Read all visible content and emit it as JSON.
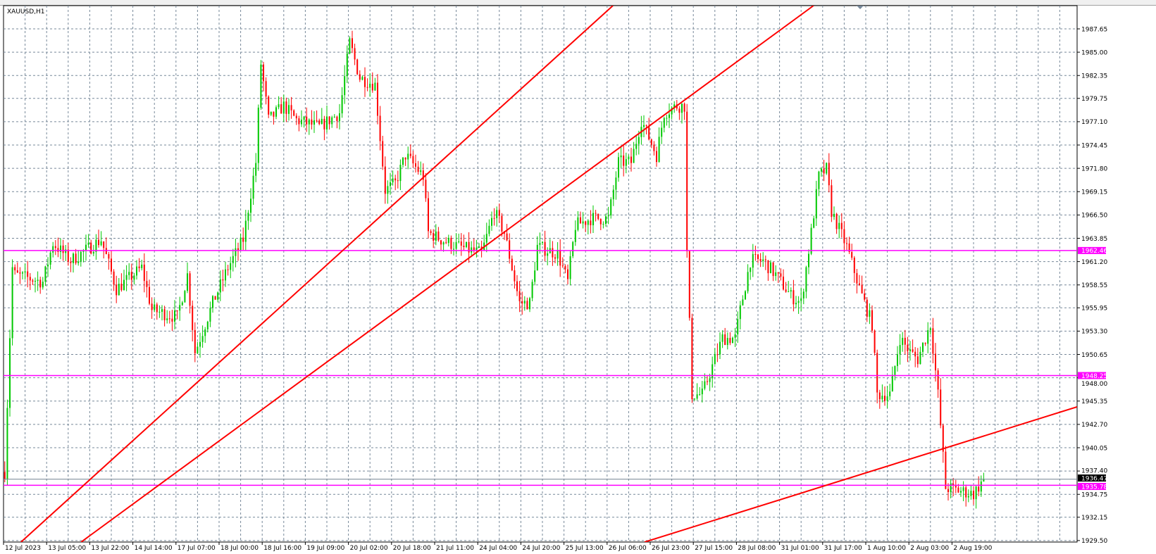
{
  "chart_title": "XAUUSD,H1",
  "colors": {
    "background": "#ffffff",
    "grid": "#778899",
    "bull_candle": "#00c800",
    "bear_candle": "#ff0000",
    "trendline": "#ff0000",
    "horizontal_level": "#ff00ff",
    "current_price_line": "#708090",
    "current_price_tag": "#000000"
  },
  "chart_data": {
    "type": "candlestick",
    "symbol": "XAUUSD",
    "timeframe": "H1",
    "grid": true,
    "ylim": [
      1929.33,
      1990.29
    ],
    "y_ticks": [
      "1987.65",
      "1985.00",
      "1982.35",
      "1979.75",
      "1977.10",
      "1974.45",
      "1971.80",
      "1969.15",
      "1966.50",
      "1963.85",
      "1961.20",
      "1958.55",
      "1955.95",
      "1953.30",
      "1950.65",
      "1948.00",
      "1945.35",
      "1942.70",
      "1940.05",
      "1937.40",
      "1934.75",
      "1932.15",
      "1929.50"
    ],
    "x_ticks": [
      "12 Jul 2023",
      "13 Jul 05:00",
      "13 Jul 22:00",
      "14 Jul 14:00",
      "17 Jul 07:00",
      "18 Jul 00:00",
      "18 Jul 16:00",
      "19 Jul 09:00",
      "20 Jul 02:00",
      "20 Jul 18:00",
      "21 Jul 11:00",
      "24 Jul 04:00",
      "24 Jul 20:00",
      "25 Jul 13:00",
      "26 Jul 06:00",
      "26 Jul 23:00",
      "27 Jul 15:00",
      "28 Jul 08:00",
      "31 Jul 01:00",
      "31 Jul 17:00",
      "1 Aug 10:00",
      "2 Aug 03:00",
      "2 Aug 19:00"
    ],
    "bars_per_x_tick": 17,
    "price_path_bar_price": [
      [
        0,
        1937.3
      ],
      [
        3,
        1960.5
      ],
      [
        4,
        1959.7
      ],
      [
        15,
        1958.9
      ],
      [
        19,
        1963.3
      ],
      [
        26,
        1961.3
      ],
      [
        38,
        1963.7
      ],
      [
        44,
        1958.1
      ],
      [
        54,
        1960.5
      ],
      [
        58,
        1955.7
      ],
      [
        68,
        1954.9
      ],
      [
        72,
        1959.7
      ],
      [
        75,
        1950.9
      ],
      [
        82,
        1956.5
      ],
      [
        88,
        1960.5
      ],
      [
        94,
        1963.7
      ],
      [
        99,
        1972.5
      ],
      [
        101,
        1983.7
      ],
      [
        104,
        1977.3
      ],
      [
        110,
        1978.9
      ],
      [
        115,
        1977.3
      ],
      [
        124,
        1976.5
      ],
      [
        132,
        1978.1
      ],
      [
        136,
        1986.1
      ],
      [
        140,
        1982.1
      ],
      [
        146,
        1981.3
      ],
      [
        150,
        1969.3
      ],
      [
        154,
        1970.1
      ],
      [
        158,
        1973.3
      ],
      [
        165,
        1970.9
      ],
      [
        167,
        1964.5
      ],
      [
        172,
        1963.7
      ],
      [
        179,
        1962.9
      ],
      [
        188,
        1962.1
      ],
      [
        193,
        1966.9
      ],
      [
        197,
        1964.5
      ],
      [
        203,
        1956.5
      ],
      [
        207,
        1956.5
      ],
      [
        210,
        1962.9
      ],
      [
        218,
        1962.1
      ],
      [
        222,
        1958.9
      ],
      [
        225,
        1965.3
      ],
      [
        231,
        1966.1
      ],
      [
        238,
        1966.1
      ],
      [
        242,
        1972.5
      ],
      [
        247,
        1972.5
      ],
      [
        251,
        1977.3
      ],
      [
        257,
        1973.3
      ],
      [
        260,
        1978.1
      ],
      [
        265,
        1978.9
      ],
      [
        268,
        1978.9
      ],
      [
        269,
        1962.1
      ],
      [
        271,
        1946.1
      ],
      [
        275,
        1946.1
      ],
      [
        279,
        1949.3
      ],
      [
        283,
        1952.5
      ],
      [
        288,
        1952.5
      ],
      [
        290,
        1955.7
      ],
      [
        294,
        1961.3
      ],
      [
        299,
        1961.3
      ],
      [
        304,
        1959.7
      ],
      [
        310,
        1957.3
      ],
      [
        314,
        1956.5
      ],
      [
        318,
        1964.5
      ],
      [
        321,
        1970.9
      ],
      [
        324,
        1971.7
      ],
      [
        326,
        1966.9
      ],
      [
        332,
        1962.9
      ],
      [
        338,
        1957.3
      ],
      [
        342,
        1954.1
      ],
      [
        344,
        1946.1
      ],
      [
        349,
        1946.1
      ],
      [
        353,
        1952.5
      ],
      [
        357,
        1950.9
      ],
      [
        360,
        1950.1
      ],
      [
        365,
        1954.1
      ],
      [
        368,
        1946.1
      ],
      [
        371,
        1935.5
      ],
      [
        376,
        1935.2
      ],
      [
        382,
        1934.8
      ],
      [
        386,
        1936.47
      ]
    ],
    "horizontal_levels": [
      {
        "price": 1962.46,
        "label": "1962.46"
      },
      {
        "price": 1948.25,
        "label": "1948.25"
      },
      {
        "price": 1935.78,
        "label": "1935.78"
      }
    ],
    "current_price": {
      "price": 1936.47,
      "label": "1936.47"
    },
    "trendlines": [
      {
        "from": [
          6.9,
          1929.33
        ],
        "to": [
          240.3,
          1990.29
        ]
      },
      {
        "from": [
          30.6,
          1929.33
        ],
        "to": [
          319.4,
          1990.29
        ]
      },
      {
        "from": [
          252.8,
          1929.33
        ],
        "to": [
          423.3,
          1944.69
        ]
      }
    ]
  }
}
